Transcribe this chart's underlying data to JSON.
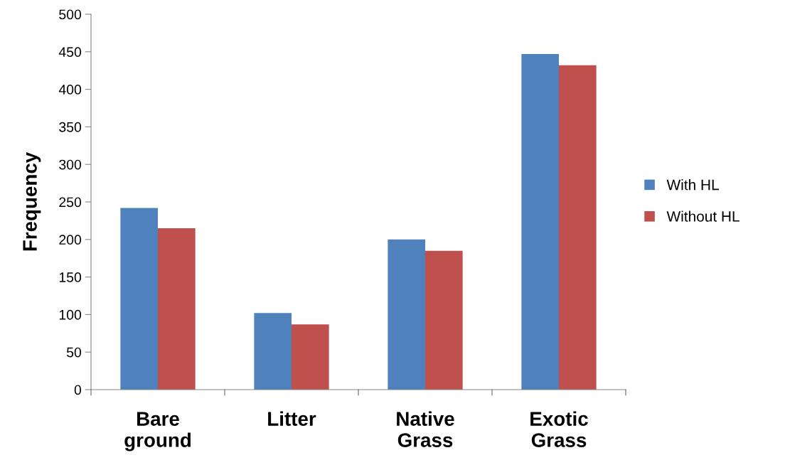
{
  "chart_data": {
    "type": "bar",
    "ylabel": "Frequency",
    "categories": [
      "Bare\nground",
      "Litter",
      "Native\nGrass",
      "Exotic\nGrass"
    ],
    "series": [
      {
        "name": "With HL",
        "color": "#4f81bd",
        "values": [
          242,
          102,
          200,
          447
        ]
      },
      {
        "name": "Without HL",
        "color": "#c0504d",
        "values": [
          215,
          87,
          185,
          432
        ]
      }
    ],
    "ylim": [
      0,
      500
    ],
    "yticks": [
      0,
      50,
      100,
      150,
      200,
      250,
      300,
      350,
      400,
      450,
      500
    ],
    "grid": false,
    "legend": "right"
  }
}
